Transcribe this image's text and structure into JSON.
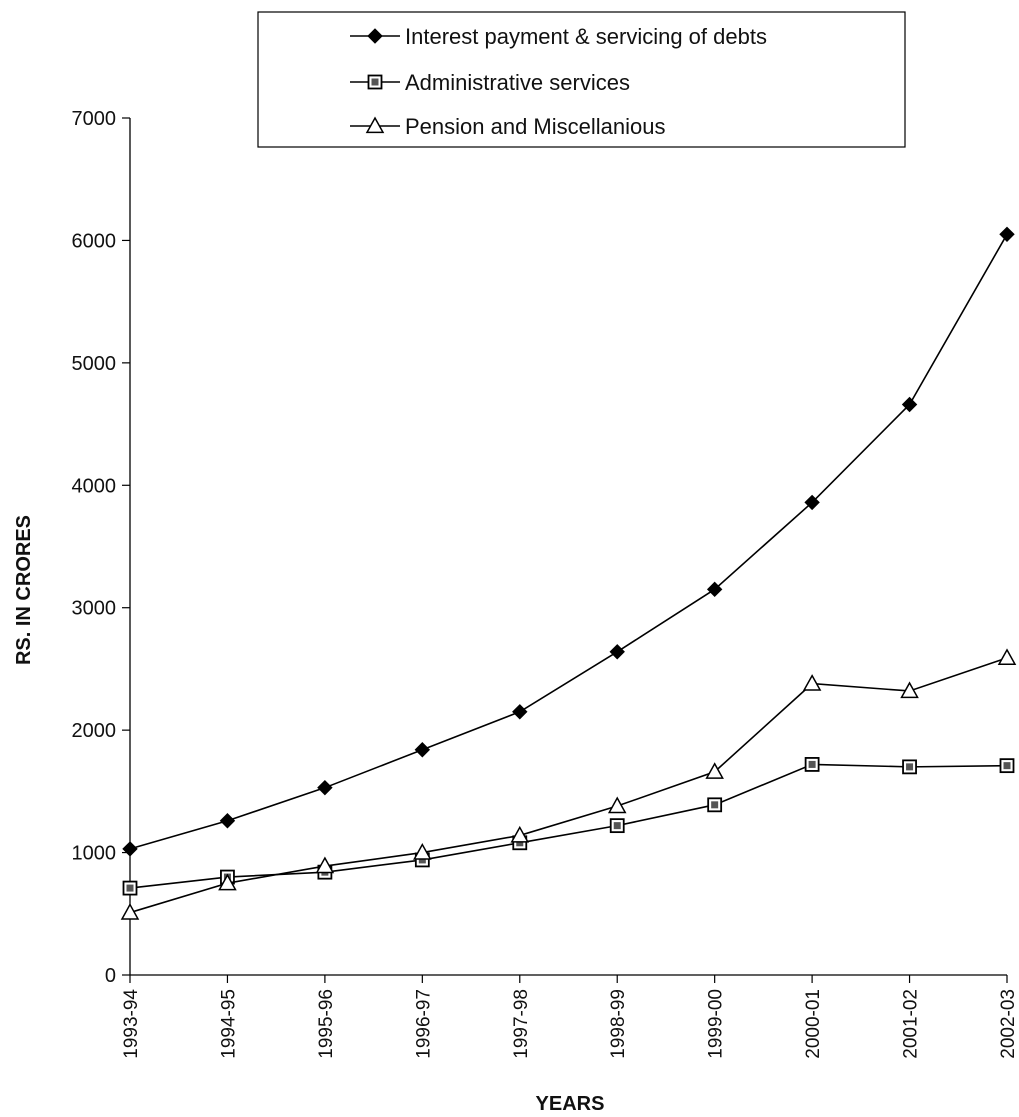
{
  "chart_data": {
    "type": "line",
    "title": "",
    "xlabel": "YEARS",
    "ylabel": "RS. IN CRORES",
    "ylim": [
      0,
      7000
    ],
    "yticks": [
      0,
      1000,
      2000,
      3000,
      4000,
      5000,
      6000,
      7000
    ],
    "grid": false,
    "legend_position": "top",
    "categories": [
      "1993-94",
      "1994-95",
      "1995-96",
      "1996-97",
      "1997-98",
      "1998-99",
      "1999-00",
      "2000-01",
      "2001-02",
      "2002-03"
    ],
    "series": [
      {
        "name": "Interest payment & servicing of debts",
        "marker": "filled-diamond",
        "color": "#000000",
        "values": [
          1030,
          1260,
          1530,
          1840,
          2150,
          2640,
          3150,
          3860,
          4660,
          6050
        ]
      },
      {
        "name": "Administrative services",
        "marker": "square",
        "color": "#000000",
        "values": [
          710,
          800,
          840,
          940,
          1080,
          1220,
          1390,
          1720,
          1700,
          1710
        ]
      },
      {
        "name": "Pension and Miscellanious",
        "marker": "open-triangle",
        "color": "#000000",
        "values": [
          510,
          750,
          890,
          1000,
          1140,
          1380,
          1660,
          2380,
          2320,
          2590
        ]
      }
    ]
  }
}
